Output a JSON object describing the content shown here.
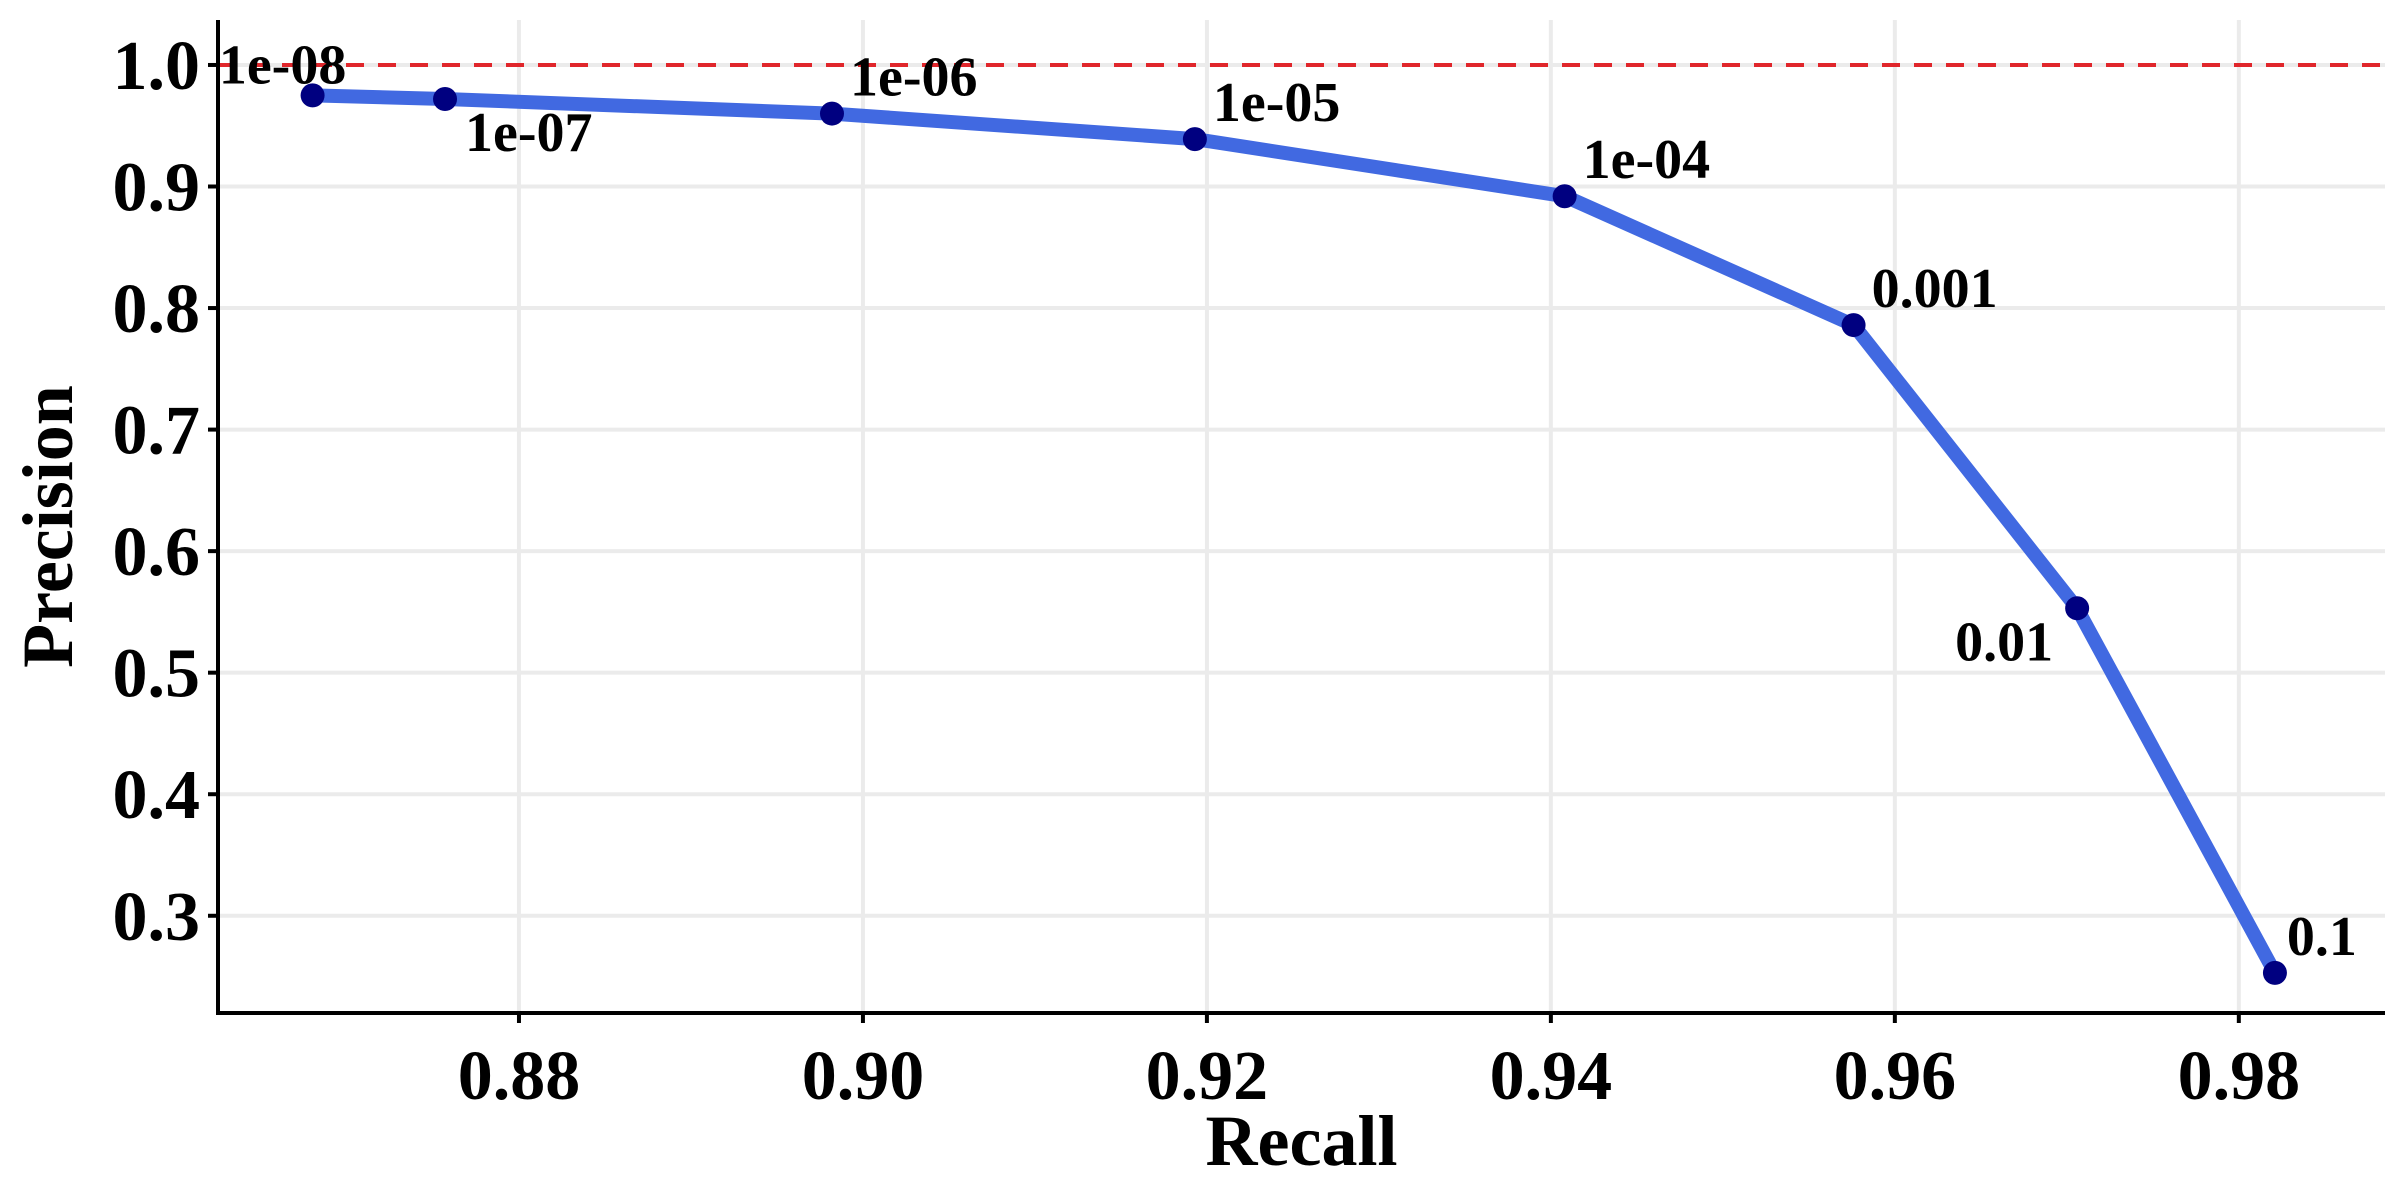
{
  "chart_data": {
    "type": "line",
    "title": "",
    "xlabel": "Recall",
    "ylabel": "Precision",
    "xlim": [
      0.8625,
      0.9885
    ],
    "ylim": [
      0.22,
      1.037
    ],
    "x_ticks": [
      0.88,
      0.9,
      0.92,
      0.94,
      0.96,
      0.98
    ],
    "x_tick_labels": [
      "0.88",
      "0.90",
      "0.92",
      "0.94",
      "0.96",
      "0.98"
    ],
    "y_ticks": [
      0.3,
      0.4,
      0.5,
      0.6,
      0.7,
      0.8,
      0.9,
      1.0
    ],
    "y_tick_labels": [
      "0.3",
      "0.4",
      "0.5",
      "0.6",
      "0.7",
      "0.8",
      "0.9",
      "1.0"
    ],
    "grid": true,
    "legend": "none",
    "reference_line": {
      "y": 1.0,
      "style": "dashed",
      "color": "#e0262b"
    },
    "series": [
      {
        "points": [
          {
            "x": 0.868,
            "y": 0.975,
            "label": "1e-08"
          },
          {
            "x": 0.8757,
            "y": 0.972,
            "label": "1e-07"
          },
          {
            "x": 0.8982,
            "y": 0.96,
            "label": "1e-06"
          },
          {
            "x": 0.9193,
            "y": 0.939,
            "label": "1e-05"
          },
          {
            "x": 0.9408,
            "y": 0.892,
            "label": "1e-04"
          },
          {
            "x": 0.9576,
            "y": 0.786,
            "label": "0.001"
          },
          {
            "x": 0.9706,
            "y": 0.553,
            "label": "0.01"
          },
          {
            "x": 0.9821,
            "y": 0.253,
            "label": "0.1"
          }
        ]
      }
    ],
    "colors": {
      "line": "#4169e1",
      "point": "#000080",
      "reference": "#e0262b",
      "grid": "#ebebeb",
      "axis": "#000000"
    }
  }
}
